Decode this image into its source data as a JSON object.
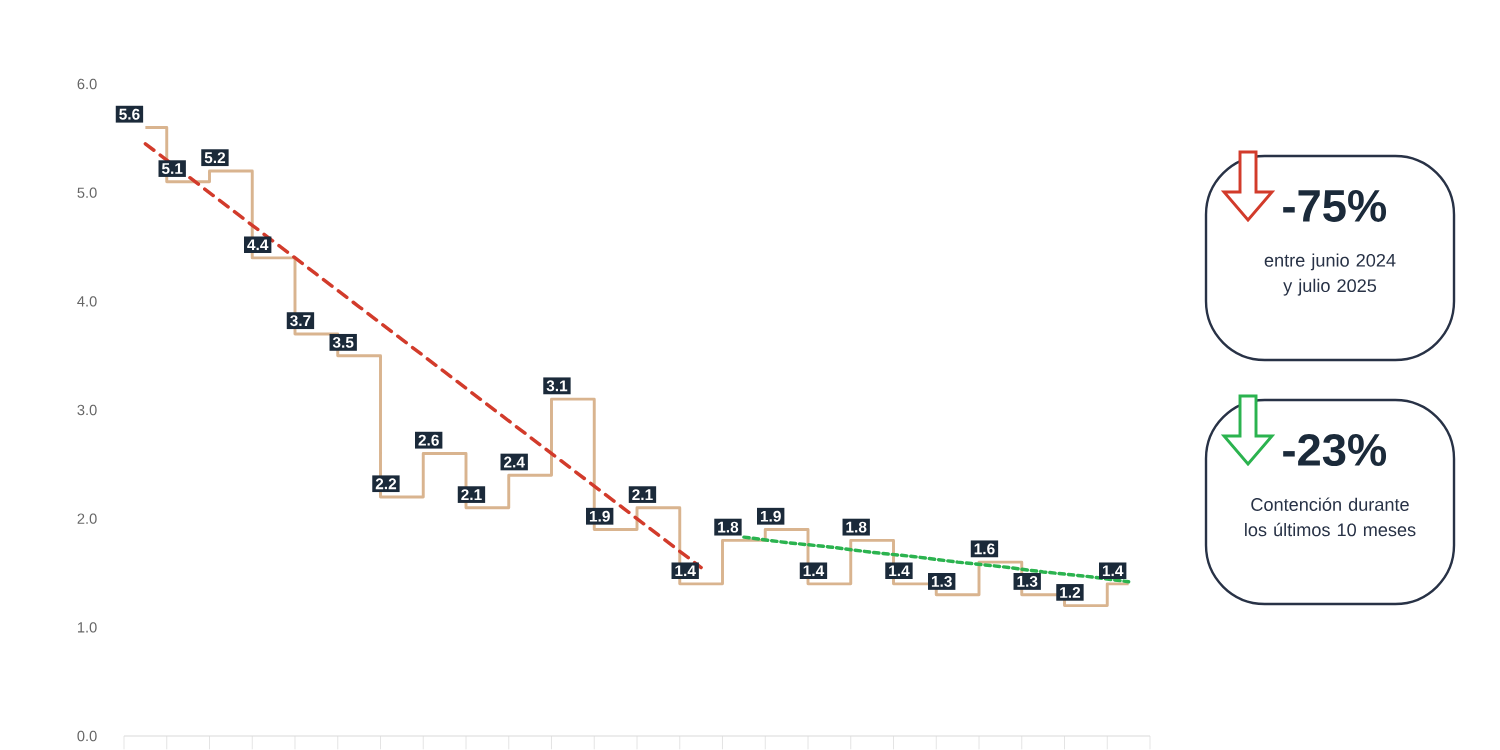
{
  "chart_data": {
    "type": "step",
    "categories": [
      null,
      null,
      null,
      null,
      null,
      null,
      null,
      null,
      null,
      null,
      null,
      null,
      null,
      null,
      null,
      null,
      null,
      null,
      null,
      null,
      null,
      null,
      null,
      null
    ],
    "ylim": [
      0,
      6
    ],
    "yticks": [
      {
        "value": 0,
        "label": "0.0"
      },
      {
        "value": 1,
        "label": "1.0"
      },
      {
        "value": 2,
        "label": "2.0"
      },
      {
        "value": 3,
        "label": "3.0"
      },
      {
        "value": 4,
        "label": "4.0"
      },
      {
        "value": 5,
        "label": "5.0"
      },
      {
        "value": 6,
        "label": "6.0"
      }
    ],
    "tick_labels": "y",
    "series": [
      {
        "color": "#d9b48f",
        "values": [
          5.6,
          5.1,
          5.2,
          4.4,
          3.7,
          3.5,
          2.2,
          2.6,
          2.1,
          2.4,
          3.1,
          1.9,
          2.1,
          1.4,
          1.8,
          1.9,
          1.4,
          1.8,
          1.4,
          1.3,
          1.6,
          1.3,
          1.2,
          1.4
        ],
        "value_labels": [
          "5.6",
          "5.1",
          "5.2",
          "4.4",
          "3.7",
          "3.5",
          "2.2",
          "2.6",
          "2.1",
          "2.4",
          "3.1",
          "1.9",
          "2.1",
          "1.4",
          "1.8",
          "1.9",
          "1.4",
          "1.8",
          "1.4",
          "1.3",
          "1.6",
          "1.3",
          "1.2",
          "1.4"
        ]
      },
      {
        "type": "line",
        "color": "#d23b2b",
        "line_style": "dashed",
        "values": [
          5.45,
          5.15,
          4.85,
          4.55,
          4.25,
          3.95,
          3.65,
          3.35,
          3.05,
          2.75,
          2.45,
          2.15,
          1.85,
          1.55,
          null,
          null,
          null,
          null,
          null,
          null,
          null,
          null,
          null,
          null
        ]
      },
      {
        "type": "line",
        "color": "#2bb34f",
        "line_style": "dotted",
        "values": [
          null,
          null,
          null,
          null,
          null,
          null,
          null,
          null,
          null,
          null,
          null,
          null,
          null,
          null,
          1.83,
          1.78,
          1.74,
          1.69,
          1.65,
          1.6,
          1.56,
          1.51,
          1.47,
          1.42
        ]
      }
    ],
    "annotations": [
      "-75%",
      "entre junio 2024 y julio 2025",
      "-23%",
      "Contención durante los últimos 10 meses"
    ]
  }
}
